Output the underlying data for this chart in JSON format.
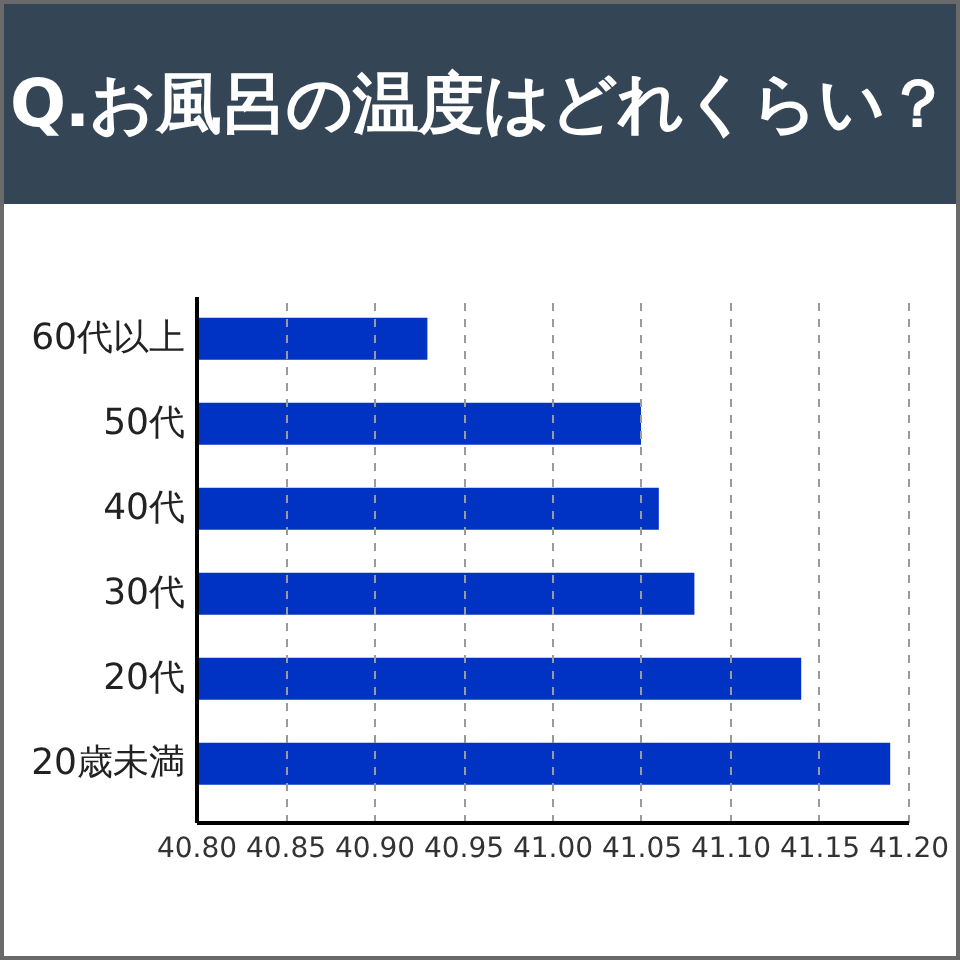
{
  "chart_data": {
    "type": "bar",
    "orientation": "horizontal",
    "title": "Q.お風呂の温度はどれくらい？",
    "categories": [
      "60代以上",
      "50代",
      "40代",
      "30代",
      "20代",
      "20歳未満"
    ],
    "values": [
      40.93,
      41.05,
      41.06,
      41.08,
      41.14,
      41.19
    ],
    "color": "#0033c4",
    "xlim": [
      40.8,
      41.2
    ],
    "xticks": [
      {
        "value": 40.8,
        "label": "40.80"
      },
      40.85,
      {
        "value": 40.9,
        "label": "40.90"
      },
      40.95,
      {
        "value": 41,
        "label": "41.00"
      },
      41.05,
      {
        "value": 41.1,
        "label": "41.10"
      },
      41.15,
      {
        "value": 41.2,
        "label": "41.20"
      }
    ],
    "grid": "x"
  }
}
